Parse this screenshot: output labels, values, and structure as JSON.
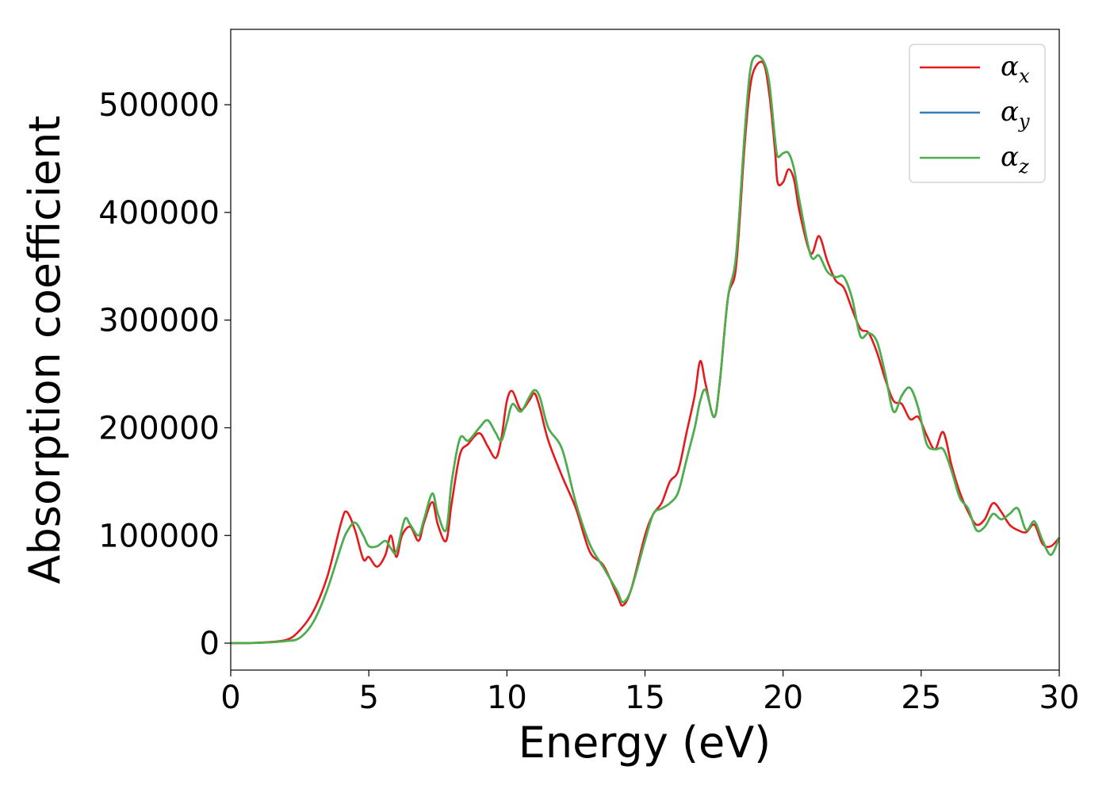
{
  "chart_data": {
    "type": "line",
    "title": "",
    "xlabel": "Energy (eV)",
    "ylabel": "Absorption coefficient",
    "xlim": [
      0,
      30
    ],
    "ylim": [
      -25000,
      570000
    ],
    "x_ticks": [
      0,
      5,
      10,
      15,
      20,
      25,
      30
    ],
    "y_ticks": [
      0,
      100000,
      200000,
      300000,
      400000,
      500000
    ],
    "grid": false,
    "legend_position": "top-right",
    "series": [
      {
        "name": "α",
        "subscript": "x",
        "color": "#e41a1c",
        "x": [
          0,
          1,
          2,
          2.5,
          3,
          3.5,
          4,
          4.2,
          4.5,
          4.8,
          5.0,
          5.3,
          5.6,
          5.8,
          6.0,
          6.2,
          6.5,
          6.8,
          7.0,
          7.3,
          7.5,
          7.8,
          8.0,
          8.3,
          8.6,
          9.0,
          9.3,
          9.6,
          9.8,
          10.0,
          10.2,
          10.5,
          10.8,
          11.0,
          11.2,
          11.5,
          12.0,
          12.5,
          13.0,
          13.5,
          14.0,
          14.2,
          14.5,
          15.0,
          15.3,
          15.6,
          15.9,
          16.2,
          16.5,
          16.8,
          17.0,
          17.2,
          17.5,
          17.7,
          18.0,
          18.3,
          18.6,
          18.8,
          19.0,
          19.3,
          19.5,
          19.7,
          19.8,
          20.0,
          20.2,
          20.4,
          20.6,
          21.0,
          21.3,
          21.6,
          21.9,
          22.2,
          22.5,
          22.8,
          23.1,
          23.4,
          23.7,
          24.0,
          24.3,
          24.6,
          24.9,
          25.2,
          25.5,
          25.8,
          26.1,
          26.4,
          26.7,
          27.0,
          27.3,
          27.6,
          27.9,
          28.2,
          28.5,
          28.8,
          29.1,
          29.4,
          29.7,
          30.0
        ],
        "y": [
          0,
          500,
          3000,
          12000,
          30000,
          62000,
          112000,
          122000,
          105000,
          78000,
          80000,
          71000,
          82000,
          100000,
          80000,
          100000,
          108000,
          95000,
          112000,
          131000,
          110000,
          95000,
          130000,
          175000,
          185000,
          195000,
          183000,
          172000,
          190000,
          225000,
          234000,
          217000,
          225000,
          232000,
          218000,
          188000,
          155000,
          125000,
          85000,
          72000,
          44000,
          35000,
          50000,
          100000,
          120000,
          130000,
          150000,
          160000,
          195000,
          230000,
          262000,
          240000,
          210000,
          240000,
          320000,
          350000,
          460000,
          515000,
          535000,
          538000,
          510000,
          460000,
          428000,
          428000,
          440000,
          430000,
          400000,
          362000,
          378000,
          355000,
          337000,
          330000,
          310000,
          292000,
          288000,
          270000,
          245000,
          225000,
          222000,
          208000,
          210000,
          193000,
          180000,
          196000,
          165000,
          140000,
          122000,
          110000,
          115000,
          130000,
          122000,
          110000,
          105000,
          103000,
          110000,
          92000,
          90000,
          98000
        ]
      },
      {
        "name": "α",
        "subscript": "y",
        "color": "#377eb8",
        "x": [
          0,
          1,
          2,
          2.5,
          3,
          3.5,
          4,
          4.2,
          4.5,
          4.8,
          5.0,
          5.3,
          5.6,
          5.8,
          6.0,
          6.3,
          6.5,
          6.8,
          7.0,
          7.3,
          7.5,
          7.8,
          8.0,
          8.3,
          8.6,
          9.0,
          9.3,
          9.6,
          9.8,
          10.0,
          10.2,
          10.5,
          10.8,
          11.0,
          11.2,
          11.5,
          12.0,
          12.5,
          13.0,
          13.5,
          14.0,
          14.2,
          14.5,
          15.0,
          15.3,
          15.6,
          15.9,
          16.2,
          16.5,
          16.8,
          17.0,
          17.2,
          17.5,
          17.7,
          18.0,
          18.3,
          18.6,
          18.8,
          19.0,
          19.3,
          19.5,
          19.7,
          19.8,
          20.0,
          20.2,
          20.4,
          20.6,
          21.0,
          21.3,
          21.6,
          21.9,
          22.2,
          22.5,
          22.8,
          23.1,
          23.4,
          23.7,
          24.0,
          24.3,
          24.6,
          24.9,
          25.2,
          25.5,
          25.8,
          26.1,
          26.4,
          26.7,
          27.0,
          27.3,
          27.6,
          27.9,
          28.2,
          28.5,
          28.8,
          29.1,
          29.4,
          29.7,
          30.0
        ],
        "y": [
          0,
          300,
          2000,
          5000,
          20000,
          50000,
          90000,
          103000,
          112000,
          100000,
          90000,
          90000,
          95000,
          88000,
          85000,
          115000,
          110000,
          100000,
          115000,
          139000,
          120000,
          105000,
          150000,
          190000,
          188000,
          200000,
          207000,
          195000,
          188000,
          205000,
          222000,
          215000,
          228000,
          235000,
          228000,
          200000,
          180000,
          130000,
          92000,
          70000,
          48000,
          38000,
          50000,
          95000,
          120000,
          125000,
          130000,
          140000,
          170000,
          200000,
          225000,
          235000,
          210000,
          240000,
          320000,
          360000,
          470000,
          530000,
          545000,
          540000,
          520000,
          470000,
          452000,
          455000,
          455000,
          440000,
          410000,
          360000,
          360000,
          345000,
          340000,
          340000,
          320000,
          285000,
          288000,
          280000,
          250000,
          215000,
          230000,
          237000,
          218000,
          185000,
          180000,
          180000,
          160000,
          135000,
          125000,
          105000,
          108000,
          120000,
          115000,
          120000,
          125000,
          105000,
          113000,
          95000,
          82000,
          98000
        ]
      },
      {
        "name": "α",
        "subscript": "z",
        "color": "#4daf4a",
        "x": [
          0,
          1,
          2,
          2.5,
          3,
          3.5,
          4,
          4.2,
          4.5,
          4.8,
          5.0,
          5.3,
          5.6,
          5.8,
          6.0,
          6.3,
          6.5,
          6.8,
          7.0,
          7.3,
          7.5,
          7.8,
          8.0,
          8.3,
          8.6,
          9.0,
          9.3,
          9.6,
          9.8,
          10.0,
          10.2,
          10.5,
          10.8,
          11.0,
          11.2,
          11.5,
          12.0,
          12.5,
          13.0,
          13.5,
          14.0,
          14.2,
          14.5,
          15.0,
          15.3,
          15.6,
          15.9,
          16.2,
          16.5,
          16.8,
          17.0,
          17.2,
          17.5,
          17.7,
          18.0,
          18.3,
          18.6,
          18.8,
          19.0,
          19.3,
          19.5,
          19.7,
          19.8,
          20.0,
          20.2,
          20.4,
          20.6,
          21.0,
          21.3,
          21.6,
          21.9,
          22.2,
          22.5,
          22.8,
          23.1,
          23.4,
          23.7,
          24.0,
          24.3,
          24.6,
          24.9,
          25.2,
          25.5,
          25.8,
          26.1,
          26.4,
          26.7,
          27.0,
          27.3,
          27.6,
          27.9,
          28.2,
          28.5,
          28.8,
          29.1,
          29.4,
          29.7,
          30.0
        ],
        "y": [
          0,
          300,
          2000,
          5000,
          20000,
          50000,
          90000,
          103000,
          112000,
          100000,
          90000,
          90000,
          95000,
          88000,
          85000,
          115000,
          110000,
          100000,
          115000,
          139000,
          120000,
          105000,
          150000,
          190000,
          188000,
          200000,
          207000,
          195000,
          188000,
          205000,
          222000,
          215000,
          228000,
          235000,
          228000,
          200000,
          180000,
          130000,
          92000,
          70000,
          48000,
          38000,
          50000,
          95000,
          120000,
          125000,
          130000,
          140000,
          170000,
          200000,
          225000,
          235000,
          210000,
          240000,
          320000,
          360000,
          470000,
          530000,
          545000,
          540000,
          520000,
          470000,
          452000,
          455000,
          455000,
          440000,
          410000,
          360000,
          360000,
          345000,
          340000,
          340000,
          320000,
          285000,
          288000,
          280000,
          250000,
          215000,
          230000,
          237000,
          218000,
          185000,
          180000,
          180000,
          160000,
          135000,
          125000,
          105000,
          108000,
          120000,
          115000,
          120000,
          125000,
          105000,
          113000,
          95000,
          82000,
          98000
        ]
      }
    ]
  }
}
